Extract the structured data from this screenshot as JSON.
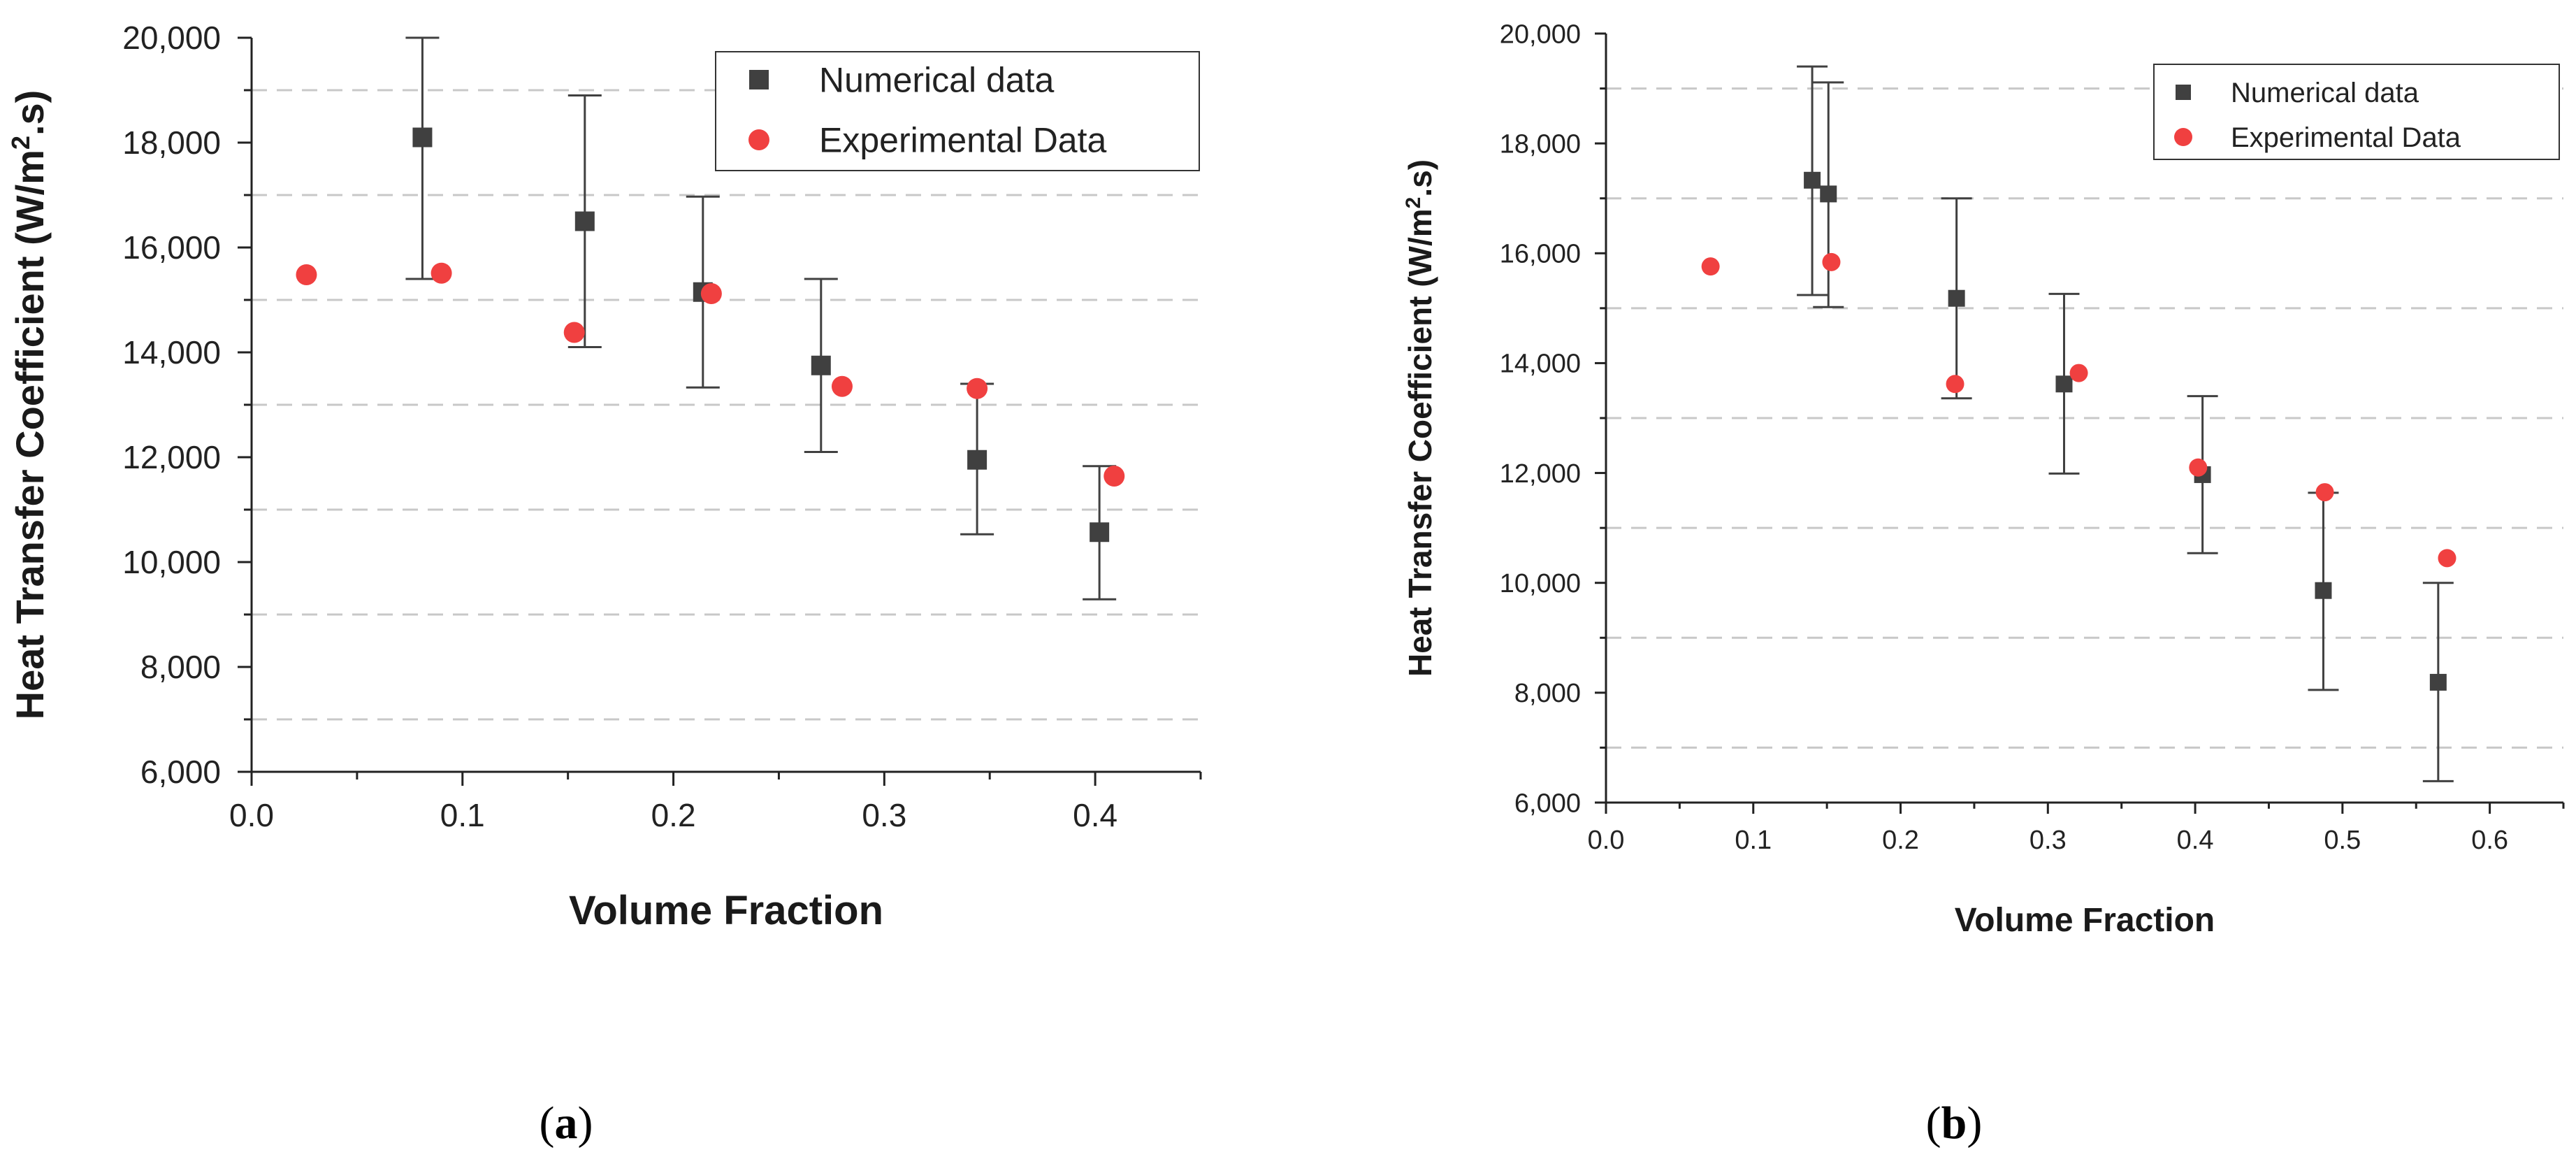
{
  "panels": [
    {
      "caption_open": "(",
      "caption_letter": "a",
      "caption_close": ")"
    },
    {
      "caption_open": "(",
      "caption_letter": "b",
      "caption_close": ")"
    }
  ],
  "colors": {
    "numerical": "#404040",
    "experimental": "#f04040",
    "grid": "#c8c8c8",
    "errorbar": "#404040"
  },
  "chart_data": [
    {
      "type": "scatter",
      "title": "",
      "xlabel": "Volume Fraction",
      "ylabel": "Heat Transfer Coefficient (W/m",
      "ylabel_sup": "2",
      "ylabel_end": ".s)",
      "xlim": [
        0,
        0.45
      ],
      "ylim": [
        6000,
        20000
      ],
      "xticks": [
        0.0,
        0.1,
        0.2,
        0.3,
        0.4
      ],
      "xtick_labels": [
        "0.0",
        "0.1",
        "0.2",
        "0.3",
        "0.4"
      ],
      "yticks": [
        6000,
        8000,
        10000,
        12000,
        14000,
        16000,
        18000,
        20000
      ],
      "ytick_labels": [
        "6,000",
        "8,000",
        "10,000",
        "12,000",
        "14,000",
        "16,000",
        "18,000",
        "20,000"
      ],
      "grid_y": [
        7000,
        9000,
        11000,
        13000,
        15000,
        17000,
        19000
      ],
      "legend_position": "top-right",
      "series": [
        {
          "name": "Numerical data",
          "marker": "square",
          "x": [
            0.081,
            0.158,
            0.214,
            0.27,
            0.344,
            0.402
          ],
          "y": [
            18100,
            16500,
            15150,
            13750,
            11950,
            10570
          ],
          "err_low": [
            15400,
            14100,
            13330,
            12100,
            10530,
            9290
          ],
          "err_high": [
            20000,
            18900,
            16970,
            15400,
            13400,
            11830
          ]
        },
        {
          "name": "Experimental Data",
          "marker": "circle",
          "x": [
            0.026,
            0.09,
            0.153,
            0.218,
            0.28,
            0.344,
            0.409
          ],
          "y": [
            15480,
            15510,
            14380,
            15120,
            13350,
            13310,
            11640
          ]
        }
      ]
    },
    {
      "type": "scatter",
      "title": "",
      "xlabel": "Volume Fraction",
      "ylabel": "Heat Transfer Coefficient (W/m",
      "ylabel_sup": "2",
      "ylabel_end": ".s)",
      "xlim": [
        0,
        0.65
      ],
      "ylim": [
        6000,
        20000
      ],
      "xticks": [
        0.0,
        0.1,
        0.2,
        0.3,
        0.4,
        0.5,
        0.6
      ],
      "xtick_labels": [
        "0.0",
        "0.1",
        "0.2",
        "0.3",
        "0.4",
        "0.5",
        "0.6"
      ],
      "yticks": [
        6000,
        8000,
        10000,
        12000,
        14000,
        16000,
        18000,
        20000
      ],
      "ytick_labels": [
        "6,000",
        "8,000",
        "10,000",
        "12,000",
        "14,000",
        "16,000",
        "18,000",
        "20,000"
      ],
      "grid_y": [
        7000,
        9000,
        11000,
        13000,
        15000,
        17000,
        19000
      ],
      "legend_position": "top-right",
      "series": [
        {
          "name": "Numerical data",
          "marker": "square",
          "x": [
            0.14,
            0.151,
            0.238,
            0.311,
            0.405,
            0.487,
            0.565
          ],
          "y": [
            17330,
            17080,
            15180,
            13620,
            11970,
            9860,
            8190
          ],
          "err_low": [
            15240,
            15020,
            13360,
            11990,
            10540,
            8050,
            6390
          ],
          "err_high": [
            19400,
            19110,
            17000,
            15260,
            13400,
            11640,
            10000
          ]
        },
        {
          "name": "Experimental Data",
          "marker": "circle",
          "x": [
            0.071,
            0.153,
            0.237,
            0.321,
            0.402,
            0.488,
            0.571
          ],
          "y": [
            15760,
            15840,
            13620,
            13820,
            12100,
            11650,
            10450
          ]
        }
      ]
    }
  ]
}
